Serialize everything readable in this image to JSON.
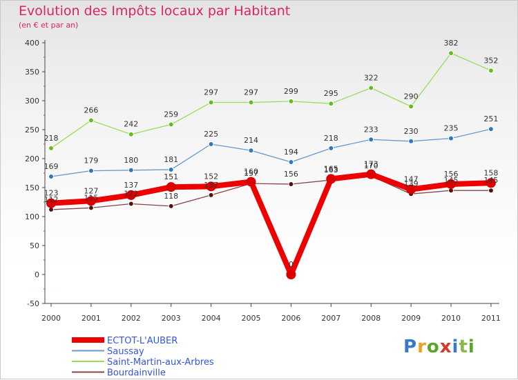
{
  "chart_data": {
    "type": "line",
    "title": "Evolution des Impôts locaux par Habitant",
    "subtitle": "(en € et par an)",
    "categories": [
      "2000",
      "2001",
      "2002",
      "2003",
      "2004",
      "2005",
      "2006",
      "2007",
      "2008",
      "2009",
      "2010",
      "2011"
    ],
    "ylim": [
      -50,
      400
    ],
    "yticks": [
      "-50",
      "0",
      "50",
      "100",
      "150",
      "200",
      "250",
      "300",
      "350",
      "400"
    ],
    "grid": false,
    "legend_position": "bottom-left",
    "series": [
      {
        "name": "Saint-Martin-aux-Arbres",
        "color": "#99dd55",
        "marker": "#66bb22",
        "width": 1.3,
        "values": [
          218,
          266,
          242,
          259,
          297,
          297,
          299,
          295,
          322,
          290,
          382,
          352
        ],
        "labels": [
          "218",
          "266",
          "242",
          "259",
          "297",
          "297",
          "299",
          "295",
          "322",
          "290",
          "382",
          "352"
        ]
      },
      {
        "name": "Saussay",
        "color": "#6699cc",
        "marker": "#3377bb",
        "width": 1.3,
        "values": [
          169,
          179,
          180,
          181,
          225,
          214,
          194,
          218,
          233,
          230,
          235,
          251
        ],
        "labels": [
          "169",
          "179",
          "180",
          "181",
          "225",
          "214",
          "194",
          "218",
          "233",
          "230",
          "235",
          "251"
        ]
      },
      {
        "name": "Bourdainville",
        "color": "#884444",
        "marker": "#551111",
        "width": 1.3,
        "values": [
          112,
          115,
          122,
          118,
          137,
          157,
          156,
          163,
          170,
          139,
          145,
          145
        ],
        "labels": [
          "112",
          "115",
          "122",
          "118",
          "137",
          "157",
          "156",
          "163",
          "170",
          "139",
          "145",
          "145"
        ]
      },
      {
        "name": "ECTOT-L'AUBER",
        "color": "#ee0000",
        "marker": "#dd0000",
        "width": 8,
        "values": [
          123,
          127,
          137,
          151,
          152,
          160,
          0,
          165,
          173,
          147,
          156,
          158
        ],
        "labels": [
          "123",
          "127",
          "137",
          "151",
          "152",
          "160",
          "0",
          "165",
          "173",
          "147",
          "156",
          "158"
        ]
      }
    ],
    "legend_order": [
      "ECTOT-L'AUBER",
      "Saussay",
      "Saint-Martin-aux-Arbres",
      "Bourdainville"
    ]
  },
  "watermark": {
    "letters": [
      "P",
      "r",
      "o",
      "x",
      "i",
      "t",
      "i"
    ]
  }
}
